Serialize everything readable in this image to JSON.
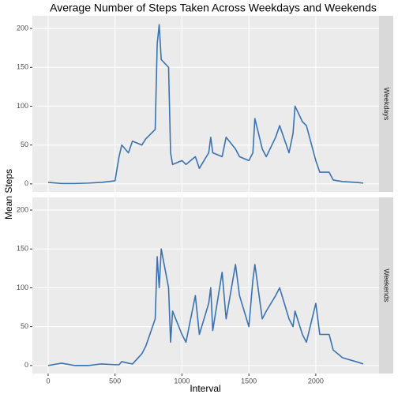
{
  "chart_data": {
    "type": "line",
    "title": "Average Number of Steps Taken Across Weekdays and Weekends",
    "x_label": "Interval",
    "y_label": "Mean Steps",
    "x": [
      0,
      100,
      200,
      300,
      400,
      500,
      530,
      550,
      600,
      630,
      700,
      730,
      800,
      815,
      830,
      845,
      900,
      915,
      930,
      1000,
      1030,
      1100,
      1130,
      1200,
      1215,
      1230,
      1300,
      1330,
      1400,
      1430,
      1500,
      1530,
      1545,
      1600,
      1630,
      1700,
      1730,
      1800,
      1830,
      1845,
      1900,
      1930,
      2000,
      2030,
      2100,
      2130,
      2200,
      2300,
      2355
    ],
    "series": [
      {
        "name": "Weekdays",
        "color": "#3a72b0",
        "values": [
          2,
          0.5,
          0.5,
          1,
          2,
          4,
          35,
          50,
          40,
          55,
          50,
          58,
          70,
          180,
          205,
          160,
          150,
          40,
          25,
          30,
          25,
          35,
          20,
          40,
          60,
          40,
          35,
          60,
          45,
          35,
          30,
          40,
          84,
          45,
          35,
          60,
          75,
          40,
          65,
          100,
          80,
          75,
          30,
          15,
          15,
          5,
          3,
          2,
          1
        ]
      },
      {
        "name": "Weekends",
        "color": "#3a72b0",
        "values": [
          0,
          3,
          0,
          0,
          2,
          1,
          1,
          5,
          3,
          2,
          15,
          25,
          60,
          140,
          100,
          150,
          100,
          30,
          70,
          40,
          30,
          90,
          40,
          80,
          100,
          45,
          120,
          60,
          130,
          90,
          50,
          110,
          130,
          60,
          70,
          90,
          100,
          60,
          50,
          70,
          40,
          30,
          80,
          40,
          40,
          20,
          10,
          5,
          2
        ]
      }
    ],
    "xlim": [
      -117.75,
      2472.75
    ],
    "xticks": [
      0,
      500,
      1000,
      1500,
      2000
    ],
    "ylim": [
      -10.3,
      216.3
    ],
    "yticks": [
      0,
      50,
      100,
      150,
      200
    ],
    "grid": true
  }
}
